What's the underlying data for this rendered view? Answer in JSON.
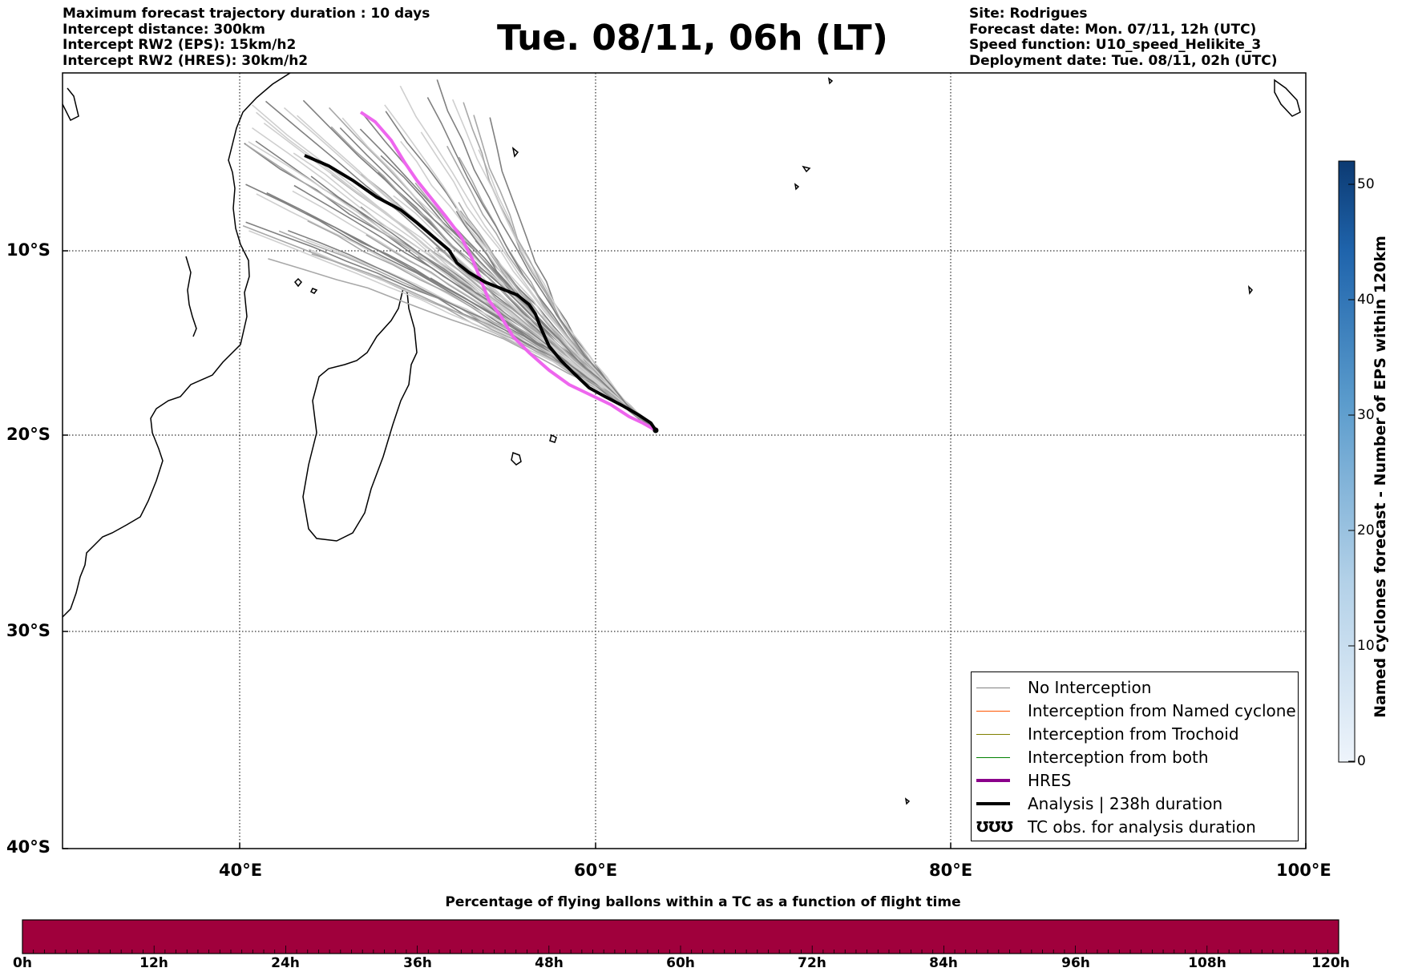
{
  "header": {
    "left_lines": [
      "Maximum forecast trajectory duration : 10 days",
      "Intercept distance: 300km",
      "Intercept RW2 (EPS):  15km/h2",
      "Intercept RW2 (HRES): 30km/h2"
    ],
    "title": "Tue. 08/11, 06h (LT)",
    "right_lines": [
      "Site: Rodrigues",
      "Forecast date: Mon. 07/11, 12h (UTC)",
      "Speed function: U10_speed_Helikite_3",
      "Deployment date: Tue. 08/11, 02h (UTC)"
    ]
  },
  "map": {
    "lat_labels": [
      "10°S",
      "20°S",
      "30°S",
      "40°S"
    ],
    "lon_labels": [
      "40°E",
      "60°E",
      "80°E",
      "100°E"
    ],
    "lon_range": [
      30,
      100
    ],
    "lat_range": [
      -40,
      -1
    ],
    "grid": true,
    "launch_site": [
      63.4,
      -19.7
    ]
  },
  "legend": {
    "items": [
      {
        "label": "No Interception",
        "color": "#808080"
      },
      {
        "label": "Interception from Named cyclone",
        "color": "#ff5500"
      },
      {
        "label": "Interception from Trochoid",
        "color": "#808000"
      },
      {
        "label": "Interception from both",
        "color": "#008000"
      },
      {
        "label": "HRES",
        "color": "#8b008b"
      },
      {
        "label": "Analysis | 238h duration",
        "color": "#000000"
      },
      {
        "label": "TC obs. for analysis duration",
        "symbol": "ƱƱƱ"
      }
    ]
  },
  "colorbar": {
    "title": "Named cyclones forecast - Number of EPS within 120km",
    "ticks": [
      "0",
      "10",
      "20",
      "30",
      "40",
      "50"
    ],
    "range": [
      0,
      52
    ],
    "colors": [
      "#eef4fb",
      "#0c3a72"
    ]
  },
  "flightbar": {
    "title": "Percentage of flying ballons within a TC as a function of flight time",
    "ticks": [
      "0h",
      "12h",
      "24h",
      "36h",
      "48h",
      "60h",
      "72h",
      "84h",
      "96h",
      "108h",
      "120h"
    ],
    "fill_color": "#a0003c"
  }
}
